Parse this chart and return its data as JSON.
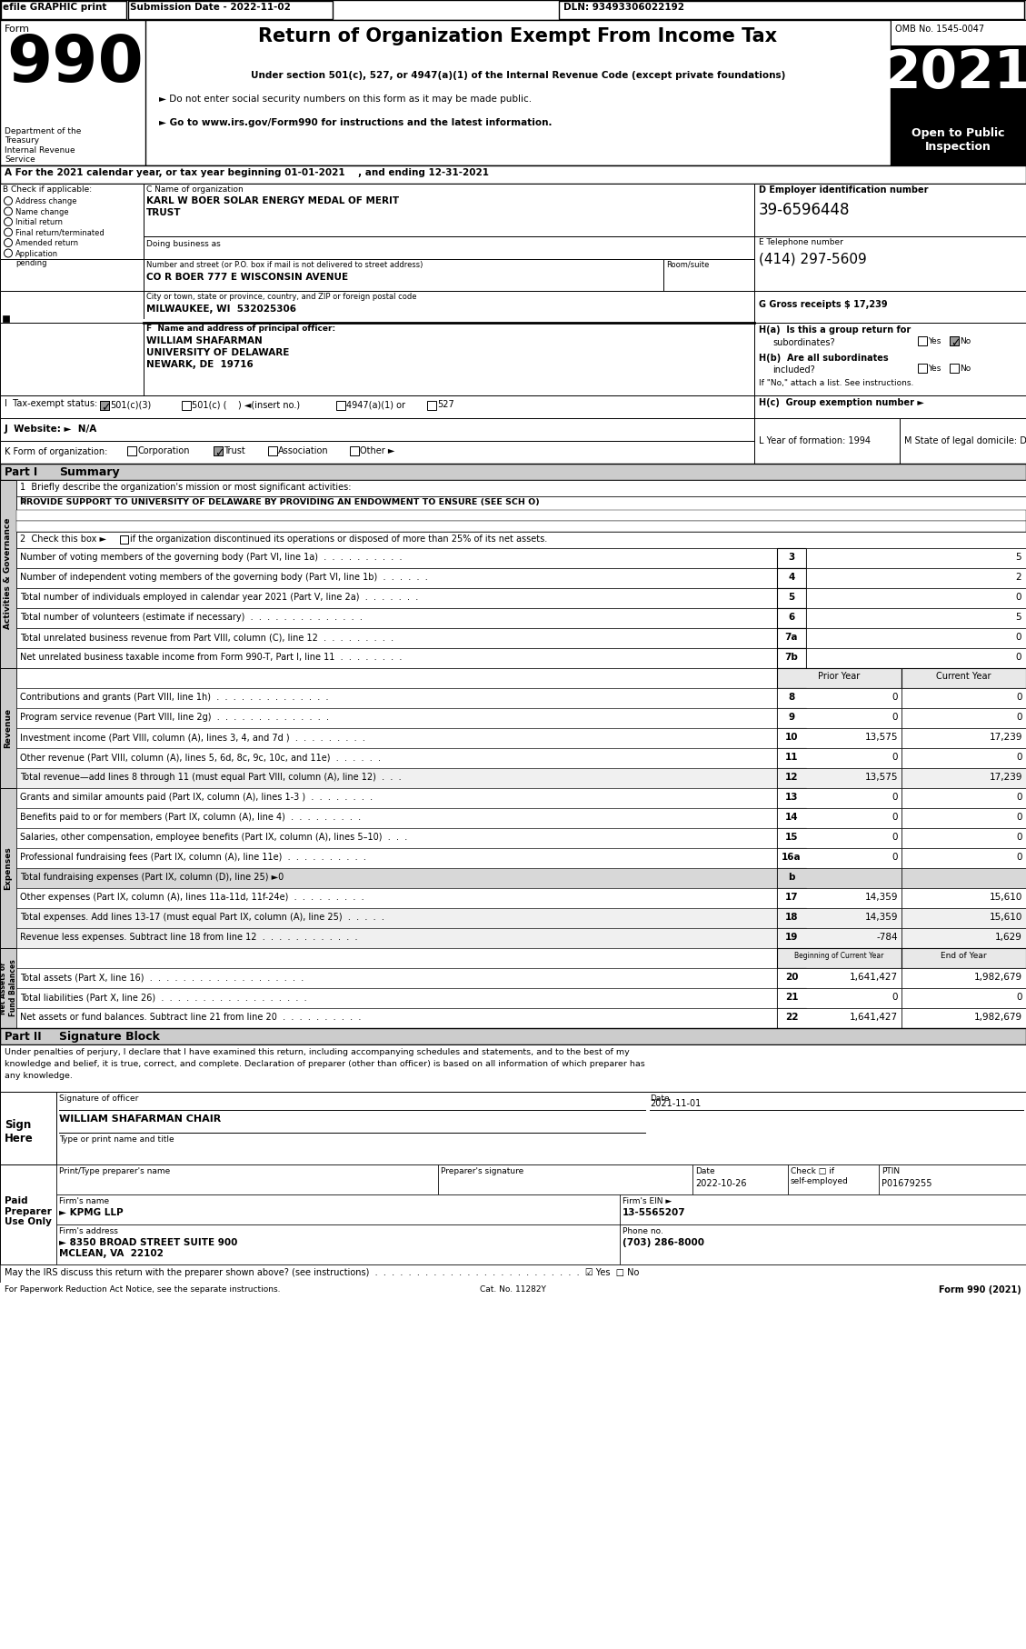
{
  "title": "Return of Organization Exempt From Income Tax",
  "subtitle1": "Under section 501(c), 527, or 4947(a)(1) of the Internal Revenue Code (except private foundations)",
  "subtitle2": "► Do not enter social security numbers on this form as it may be made public.",
  "subtitle3": "► Go to www.irs.gov/Form990 for instructions and the latest information.",
  "omb": "OMB No. 1545-0047",
  "year": "2021",
  "dept": "Department of the\nTreasury\nInternal Revenue\nService",
  "tax_year_line": "A For the 2021 calendar year, or tax year beginning 01-01-2021    , and ending 12-31-2021",
  "b_items": [
    "Address change",
    "Name change",
    "Initial return",
    "Final return/terminated",
    "Amended return",
    "Application\npending"
  ],
  "org_name_line1": "KARL W BOER SOLAR ENERGY MEDAL OF MERIT",
  "org_name_line2": "TRUST",
  "ein": "39-6596448",
  "phone": "(414) 297-5609",
  "gross_receipts": "17,239",
  "address": "CO R BOER 777 E WISCONSIN AVENUE",
  "city": "MILWAUKEE, WI  532025306",
  "officer_name": "WILLIAM SHAFARMAN",
  "officer_addr1": "UNIVERSITY OF DELAWARE",
  "officer_addr2": "NEWARK, DE  19716",
  "summary_rows": [
    {
      "num": "3",
      "text": "Number of voting members of the governing body (Part VI, line 1a)  .  .  .  .  .  .  .  .  .  .",
      "val": "5"
    },
    {
      "num": "4",
      "text": "Number of independent voting members of the governing body (Part VI, line 1b)  .  .  .  .  .  .",
      "val": "2"
    },
    {
      "num": "5",
      "text": "Total number of individuals employed in calendar year 2021 (Part V, line 2a)  .  .  .  .  .  .  .",
      "val": "0"
    },
    {
      "num": "6",
      "text": "Total number of volunteers (estimate if necessary)  .  .  .  .  .  .  .  .  .  .  .  .  .  .",
      "val": "5"
    },
    {
      "num": "7a",
      "text": "Total unrelated business revenue from Part VIII, column (C), line 12  .  .  .  .  .  .  .  .  .",
      "val": "0"
    },
    {
      "num": "7b",
      "text": "Net unrelated business taxable income from Form 990-T, Part I, line 11  .  .  .  .  .  .  .  .",
      "val": "0"
    }
  ],
  "revenue_rows": [
    {
      "num": "8",
      "text": "Contributions and grants (Part VIII, line 1h)  .  .  .  .  .  .  .  .  .  .  .  .  .  .",
      "prior": "0",
      "cur": "0"
    },
    {
      "num": "9",
      "text": "Program service revenue (Part VIII, line 2g)  .  .  .  .  .  .  .  .  .  .  .  .  .  .",
      "prior": "0",
      "cur": "0"
    },
    {
      "num": "10",
      "text": "Investment income (Part VIII, column (A), lines 3, 4, and 7d )  .  .  .  .  .  .  .  .  .",
      "prior": "13,575",
      "cur": "17,239"
    },
    {
      "num": "11",
      "text": "Other revenue (Part VIII, column (A), lines 5, 6d, 8c, 9c, 10c, and 11e)  .  .  .  .  .  .",
      "prior": "0",
      "cur": "0"
    },
    {
      "num": "12",
      "text": "Total revenue—add lines 8 through 11 (must equal Part VIII, column (A), line 12)  .  .  .",
      "prior": "13,575",
      "cur": "17,239"
    }
  ],
  "expenses_rows": [
    {
      "num": "13",
      "text": "Grants and similar amounts paid (Part IX, column (A), lines 1-3 )  .  .  .  .  .  .  .  .",
      "prior": "0",
      "cur": "0",
      "shade": false
    },
    {
      "num": "14",
      "text": "Benefits paid to or for members (Part IX, column (A), line 4)  .  .  .  .  .  .  .  .  .",
      "prior": "0",
      "cur": "0",
      "shade": false
    },
    {
      "num": "15",
      "text": "Salaries, other compensation, employee benefits (Part IX, column (A), lines 5–10)  .  .  .",
      "prior": "0",
      "cur": "0",
      "shade": false
    },
    {
      "num": "16a",
      "text": "Professional fundraising fees (Part IX, column (A), line 11e)  .  .  .  .  .  .  .  .  .  .",
      "prior": "0",
      "cur": "0",
      "shade": false
    },
    {
      "num": "b",
      "text": "Total fundraising expenses (Part IX, column (D), line 25) ►0",
      "prior": "",
      "cur": "",
      "shade": true
    },
    {
      "num": "17",
      "text": "Other expenses (Part IX, column (A), lines 11a-11d, 11f-24e)  .  .  .  .  .  .  .  .  .",
      "prior": "14,359",
      "cur": "15,610",
      "shade": false
    },
    {
      "num": "18",
      "text": "Total expenses. Add lines 13-17 (must equal Part IX, column (A), line 25)  .  .  .  .  .",
      "prior": "14,359",
      "cur": "15,610",
      "shade": false
    },
    {
      "num": "19",
      "text": "Revenue less expenses. Subtract line 18 from line 12  .  .  .  .  .  .  .  .  .  .  .  .",
      "prior": "-784",
      "cur": "1,629",
      "shade": false
    }
  ],
  "net_assets_rows": [
    {
      "num": "20",
      "text": "Total assets (Part X, line 16)  .  .  .  .  .  .  .  .  .  .  .  .  .  .  .  .  .  .  .",
      "prior": "1,641,427",
      "cur": "1,982,679"
    },
    {
      "num": "21",
      "text": "Total liabilities (Part X, line 26)  .  .  .  .  .  .  .  .  .  .  .  .  .  .  .  .  .  .",
      "prior": "0",
      "cur": "0"
    },
    {
      "num": "22",
      "text": "Net assets or fund balances. Subtract line 21 from line 20  .  .  .  .  .  .  .  .  .  .",
      "prior": "1,641,427",
      "cur": "1,982,679"
    }
  ],
  "sig_text1": "Under penalties of perjury, I declare that I have examined this return, including accompanying schedules and statements, and to the best of my",
  "sig_text2": "knowledge and belief, it is true, correct, and complete. Declaration of preparer (other than officer) is based on all information of which preparer has",
  "sig_text3": "any knowledge.",
  "sig_date": "2021-11-01",
  "sig_officer_name": "WILLIAM SHAFARMAN CHAIR",
  "preparer_date": "2022-10-26",
  "preparer_ptin": "P01679255",
  "firm_name": "► KPMG LLP",
  "firm_ein": "13-5565207",
  "firm_addr": "► 8350 BROAD STREET SUITE 900",
  "firm_city": "MCLEAN, VA  22102",
  "phone_num": "(703) 286-8000",
  "discuss_line": "May the IRS discuss this return with the preparer shown above? (see instructions)  .  .  .  .  .  .  .  .  .  .  .  .  .  .  .  .  .  .  .  .  .  .  .  .  .  ☑ Yes  □ No",
  "paperwork_line": "For Paperwork Reduction Act Notice, see the separate instructions.",
  "cat_no": "Cat. No. 11282Y",
  "form_footer": "Form 990 (2021)"
}
